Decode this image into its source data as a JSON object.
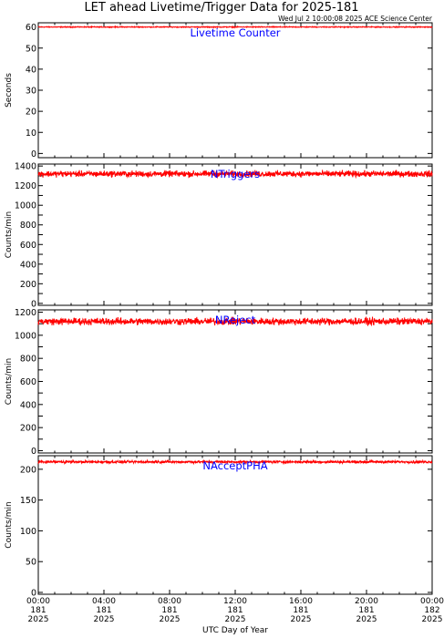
{
  "title": "LET ahead Livetime/Trigger Data for 2025-181",
  "timestamp": "Wed Jul  2 10:00:08 2025 ACE Science Center",
  "xlabel": "UTC Day of Year",
  "colors": {
    "line": "#ff0000",
    "panel_label": "#0000ff",
    "axes": "#000000",
    "background": "#ffffff"
  },
  "chart_data": [
    {
      "type": "line",
      "name": "Livetime Counter",
      "title": "Livetime Counter",
      "ylabel": "Seconds",
      "ylim": [
        -2,
        62
      ],
      "yticks": [
        0,
        10,
        20,
        30,
        40,
        50,
        60
      ],
      "x_range_hours": [
        0,
        24
      ],
      "series": [
        {
          "name": "",
          "mean": 60,
          "spread": 0.3
        }
      ]
    },
    {
      "type": "line",
      "name": "NTriggers",
      "title": "NTriggers",
      "ylabel": "Counts/min",
      "ylim": [
        -20,
        1420
      ],
      "yticks": [
        0,
        100,
        200,
        300,
        400,
        500,
        600,
        700,
        800,
        900,
        1000,
        1100,
        1200,
        1300,
        1400
      ],
      "ytick_labels": [
        "0",
        "",
        "200",
        "",
        "400",
        "",
        "600",
        "",
        "800",
        "",
        "1000",
        "",
        "1200",
        "",
        "1400"
      ],
      "x_range_hours": [
        0,
        24
      ],
      "series": [
        {
          "name": "",
          "mean": 1320,
          "spread": 45
        }
      ]
    },
    {
      "type": "line",
      "name": "NReject",
      "title": "NReject",
      "ylabel": "Counts/min",
      "ylim": [
        -20,
        1220
      ],
      "yticks": [
        0,
        100,
        200,
        300,
        400,
        500,
        600,
        700,
        800,
        900,
        1000,
        1100,
        1200
      ],
      "ytick_labels": [
        "0",
        "",
        "200",
        "",
        "400",
        "",
        "600",
        "",
        "800",
        "",
        "1000",
        "",
        "1200"
      ],
      "x_range_hours": [
        0,
        24
      ],
      "series": [
        {
          "name": "",
          "mean": 1120,
          "spread": 45
        }
      ]
    },
    {
      "type": "line",
      "name": "NAcceptPHA",
      "title": "NAcceptPHA",
      "ylabel": "Counts/min",
      "ylim": [
        -3,
        222
      ],
      "yticks": [
        0,
        50,
        100,
        150,
        200
      ],
      "ytick_labels": [
        "0",
        "50",
        "100",
        "150",
        "200"
      ],
      "x_range_hours": [
        0,
        24
      ],
      "series": [
        {
          "name": "",
          "mean": 212,
          "spread": 3
        }
      ]
    }
  ],
  "x_ticks": [
    {
      "hour": 0,
      "time": "00:00",
      "doy": "181",
      "year": "2025"
    },
    {
      "hour": 4,
      "time": "04:00",
      "doy": "181",
      "year": "2025"
    },
    {
      "hour": 8,
      "time": "08:00",
      "doy": "181",
      "year": "2025"
    },
    {
      "hour": 12,
      "time": "12:00",
      "doy": "181",
      "year": "2025"
    },
    {
      "hour": 16,
      "time": "16:00",
      "doy": "181",
      "year": "2025"
    },
    {
      "hour": 20,
      "time": "20:00",
      "doy": "181",
      "year": "2025"
    },
    {
      "hour": 24,
      "time": "00:00",
      "doy": "182",
      "year": "2025"
    }
  ]
}
